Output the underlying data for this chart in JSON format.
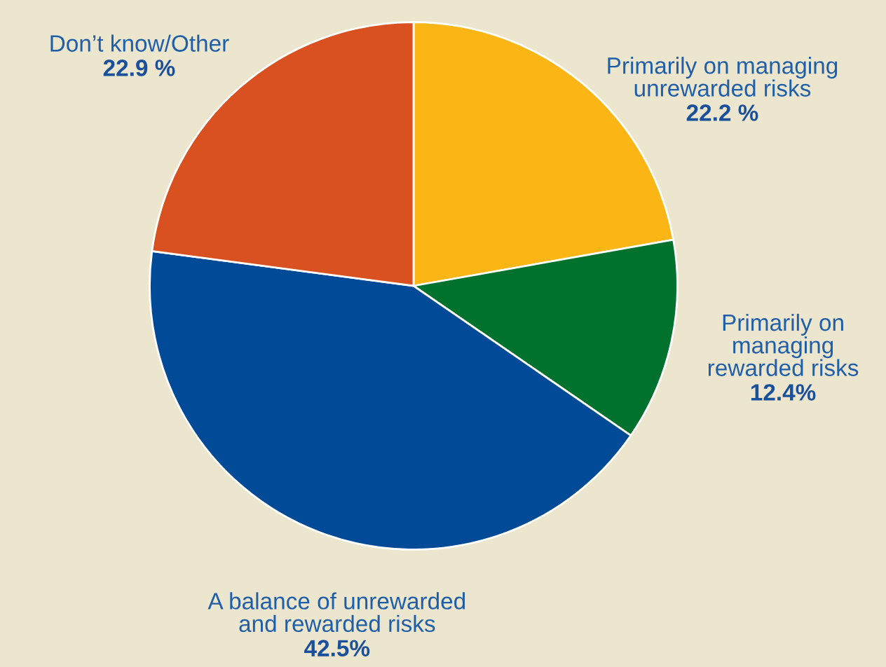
{
  "chart_data": {
    "type": "pie",
    "categories": [
      "Primarily on managing\nunrewarded risks",
      "Primarily on\nmanaging\nrewarded risks",
      "A balance of unrewarded\nand rewarded risks",
      "Don’t know/Other"
    ],
    "values": [
      22.2,
      12.4,
      42.5,
      22.9
    ],
    "value_labels": [
      "22.2 %",
      "12.4%",
      "42.5%",
      "22.9 %"
    ],
    "colors": [
      "#fbb616",
      "#00722e",
      "#004a97",
      "#d95120"
    ]
  }
}
